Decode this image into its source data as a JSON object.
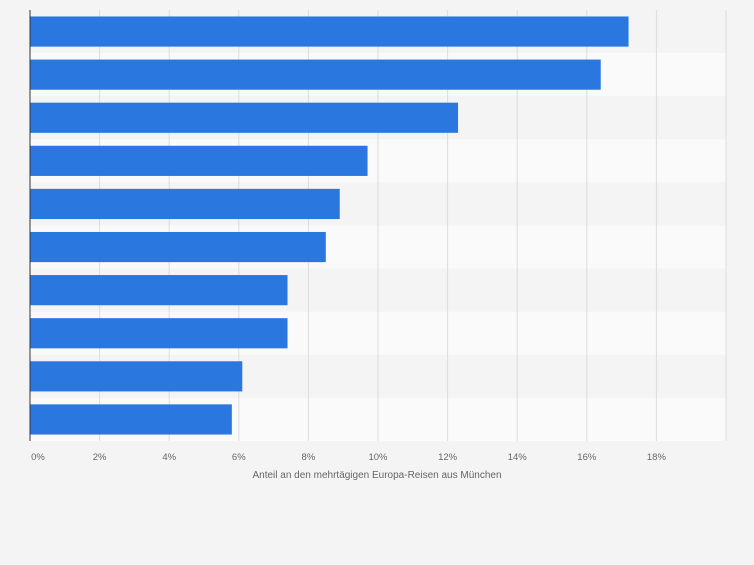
{
  "chart_data": {
    "type": "bar",
    "orientation": "horizontal",
    "categories": [
      "",
      "",
      "",
      "",
      "",
      "",
      "",
      "",
      "",
      ""
    ],
    "values": [
      17.2,
      16.4,
      12.3,
      9.7,
      8.9,
      8.5,
      7.4,
      7.4,
      6.1,
      5.8
    ],
    "xlabel": "Anteil an den mehrtägigen Europa-Reisen aus München",
    "ylabel": "",
    "xlim": [
      0,
      20
    ],
    "xticks": [
      0,
      2,
      4,
      6,
      8,
      10,
      12,
      14,
      16,
      18
    ],
    "xtick_labels": [
      "0%",
      "2%",
      "4%",
      "6%",
      "8%",
      "10%",
      "12%",
      "14%",
      "16%",
      "18%"
    ],
    "grid": true,
    "colors": {
      "bar": "#2a77e0",
      "background": "#f4f4f4",
      "band_light": "#fafafa",
      "band_dark": "#f4f4f4",
      "grid": "#dcdcdc",
      "axis": "#333333",
      "text": "#666666"
    }
  }
}
